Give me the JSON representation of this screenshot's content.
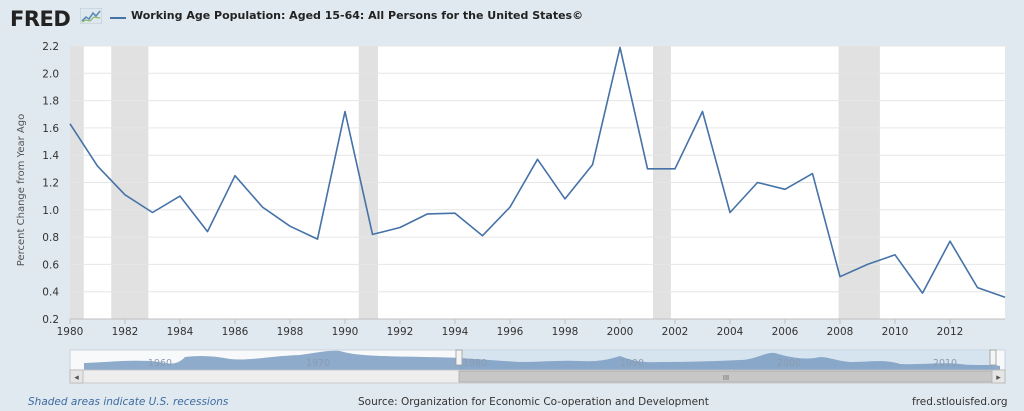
{
  "header": {
    "logo_text": "FRED",
    "series_title": "Working Age Population: Aged 15-64: All Persons for the United States©",
    "series_color": "#4572a7"
  },
  "footer": {
    "recession_note": "Shaded areas indicate U.S. recessions",
    "source": "Source: Organization for Economic Co-operation and Development",
    "site": "fred.stlouisfed.org"
  },
  "navigator": {
    "decade_labels": [
      "1960",
      "1970",
      "1980",
      "1990",
      "2000",
      "2010"
    ],
    "scroll_grip": "III",
    "left_arrow": "◂",
    "right_arrow": "▸"
  },
  "chart_data": {
    "type": "line",
    "title": "Working Age Population: Aged 15-64: All Persons for the United States©",
    "ylabel": "Percent Change from Year Ago",
    "xlabel": "",
    "xlim": [
      1980,
      2014
    ],
    "ylim": [
      0.2,
      2.2
    ],
    "yticks": [
      0.2,
      0.4,
      0.6,
      0.8,
      1.0,
      1.2,
      1.4,
      1.6,
      1.8,
      2.0,
      2.2
    ],
    "xticks": [
      1980,
      1982,
      1984,
      1986,
      1988,
      1990,
      1992,
      1994,
      1996,
      1998,
      2000,
      2002,
      2004,
      2006,
      2008,
      2010,
      2012
    ],
    "grid": true,
    "color": "#4572a7",
    "recessions": [
      [
        1980,
        1980.5
      ],
      [
        1981.5,
        1982.85
      ],
      [
        1990.5,
        1991.2
      ],
      [
        2001.2,
        2001.85
      ],
      [
        2007.95,
        2009.45
      ]
    ],
    "x": [
      1980,
      1981,
      1982,
      1983,
      1984,
      1985,
      1986,
      1987,
      1988,
      1989,
      1990,
      1991,
      1992,
      1993,
      1994,
      1995,
      1996,
      1997,
      1998,
      1999,
      2000,
      2001,
      2002,
      2003,
      2004,
      2005,
      2006,
      2007,
      2008,
      2009,
      2010,
      2011,
      2012,
      2013,
      2014
    ],
    "y": [
      1.63,
      1.32,
      1.11,
      0.98,
      1.1,
      0.84,
      1.25,
      1.02,
      0.88,
      0.785,
      1.72,
      0.82,
      0.87,
      0.97,
      0.975,
      0.81,
      1.02,
      1.37,
      1.08,
      1.33,
      2.19,
      1.3,
      1.3,
      1.72,
      0.98,
      1.2,
      1.15,
      1.265,
      0.51,
      0.6,
      0.67,
      0.39,
      0.77,
      0.43,
      0.36
    ]
  }
}
